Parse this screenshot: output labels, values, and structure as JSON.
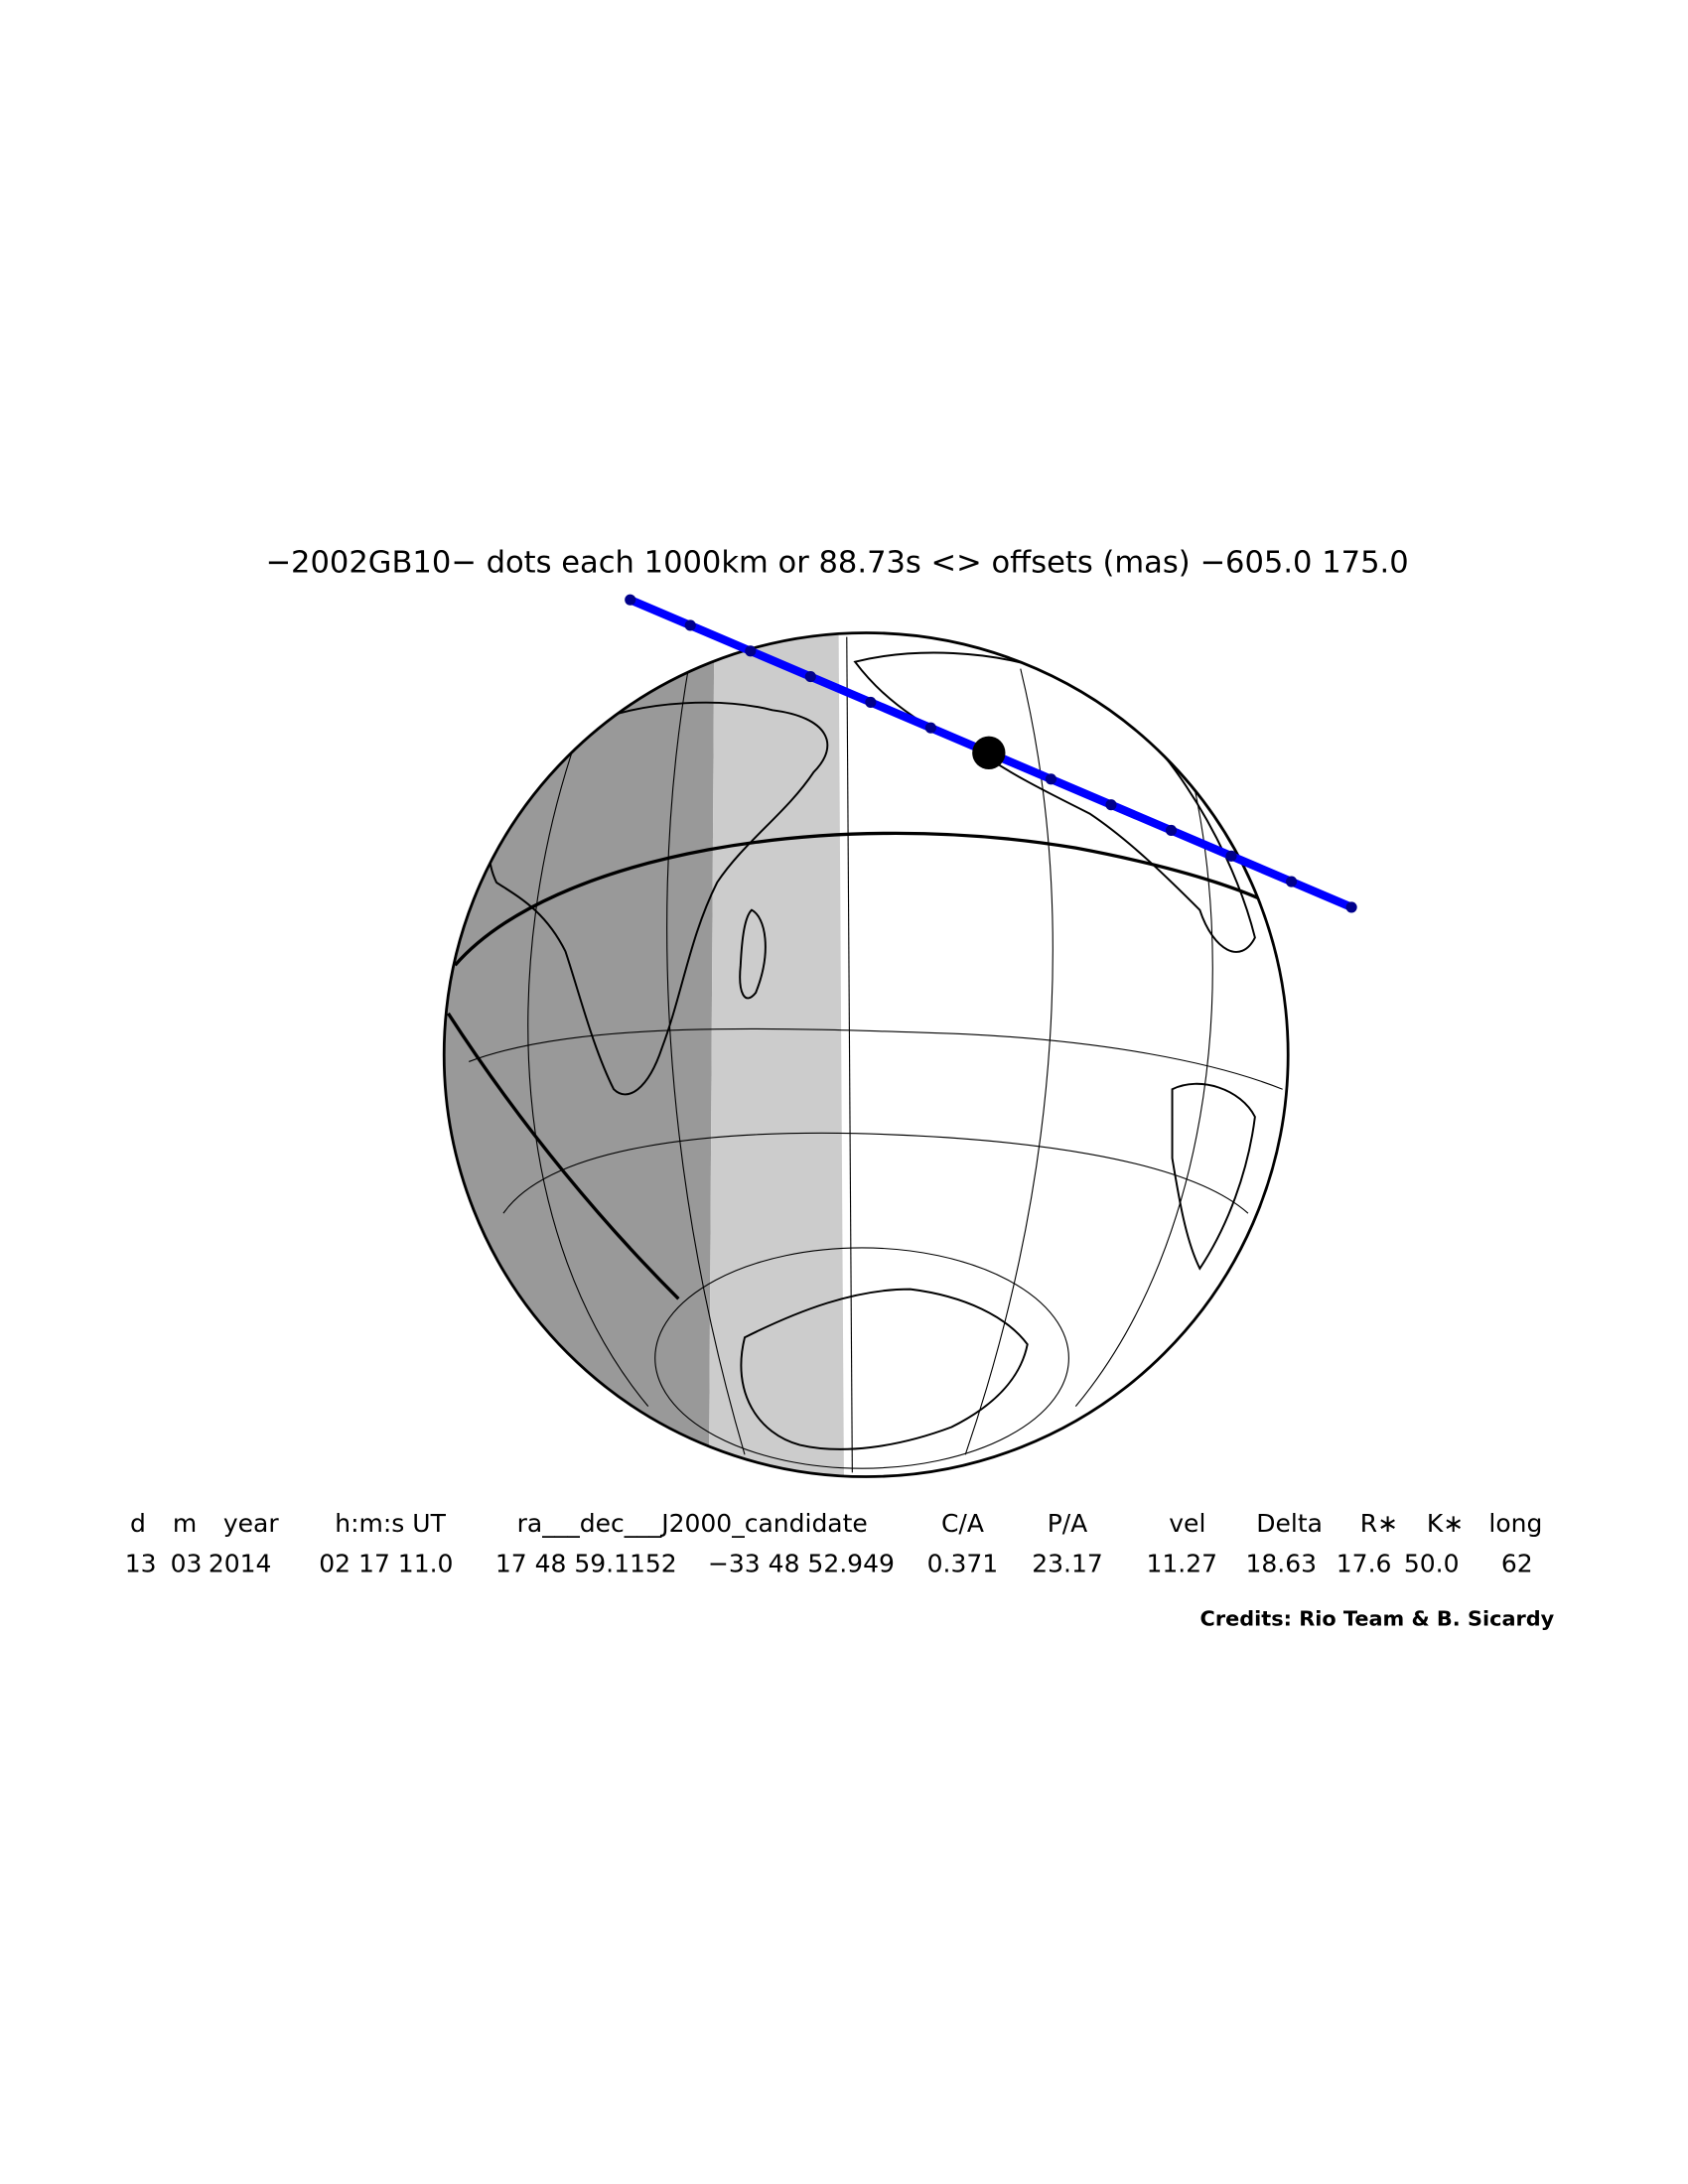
{
  "title": "−2002GB10− dots each 1000km or 88.73s <> offsets (mas) −605.0   175.0",
  "table": {
    "headers": [
      "d",
      "m",
      "year",
      "h:m:s UT",
      "ra___dec___J2000_candidate",
      "C/A",
      "P/A",
      "vel",
      "Delta",
      "R∗",
      "K∗",
      "long"
    ],
    "rows": [
      [
        "13",
        "03",
        "2014",
        "02 17 11.0",
        "17 48 59.1152",
        "−33 48 52.949",
        "0.371",
        "23.17",
        "11.27",
        "18.63",
        "17.6",
        "50.0",
        "62"
      ]
    ]
  },
  "credits": "Credits: Rio Team & B. Sicardy"
}
